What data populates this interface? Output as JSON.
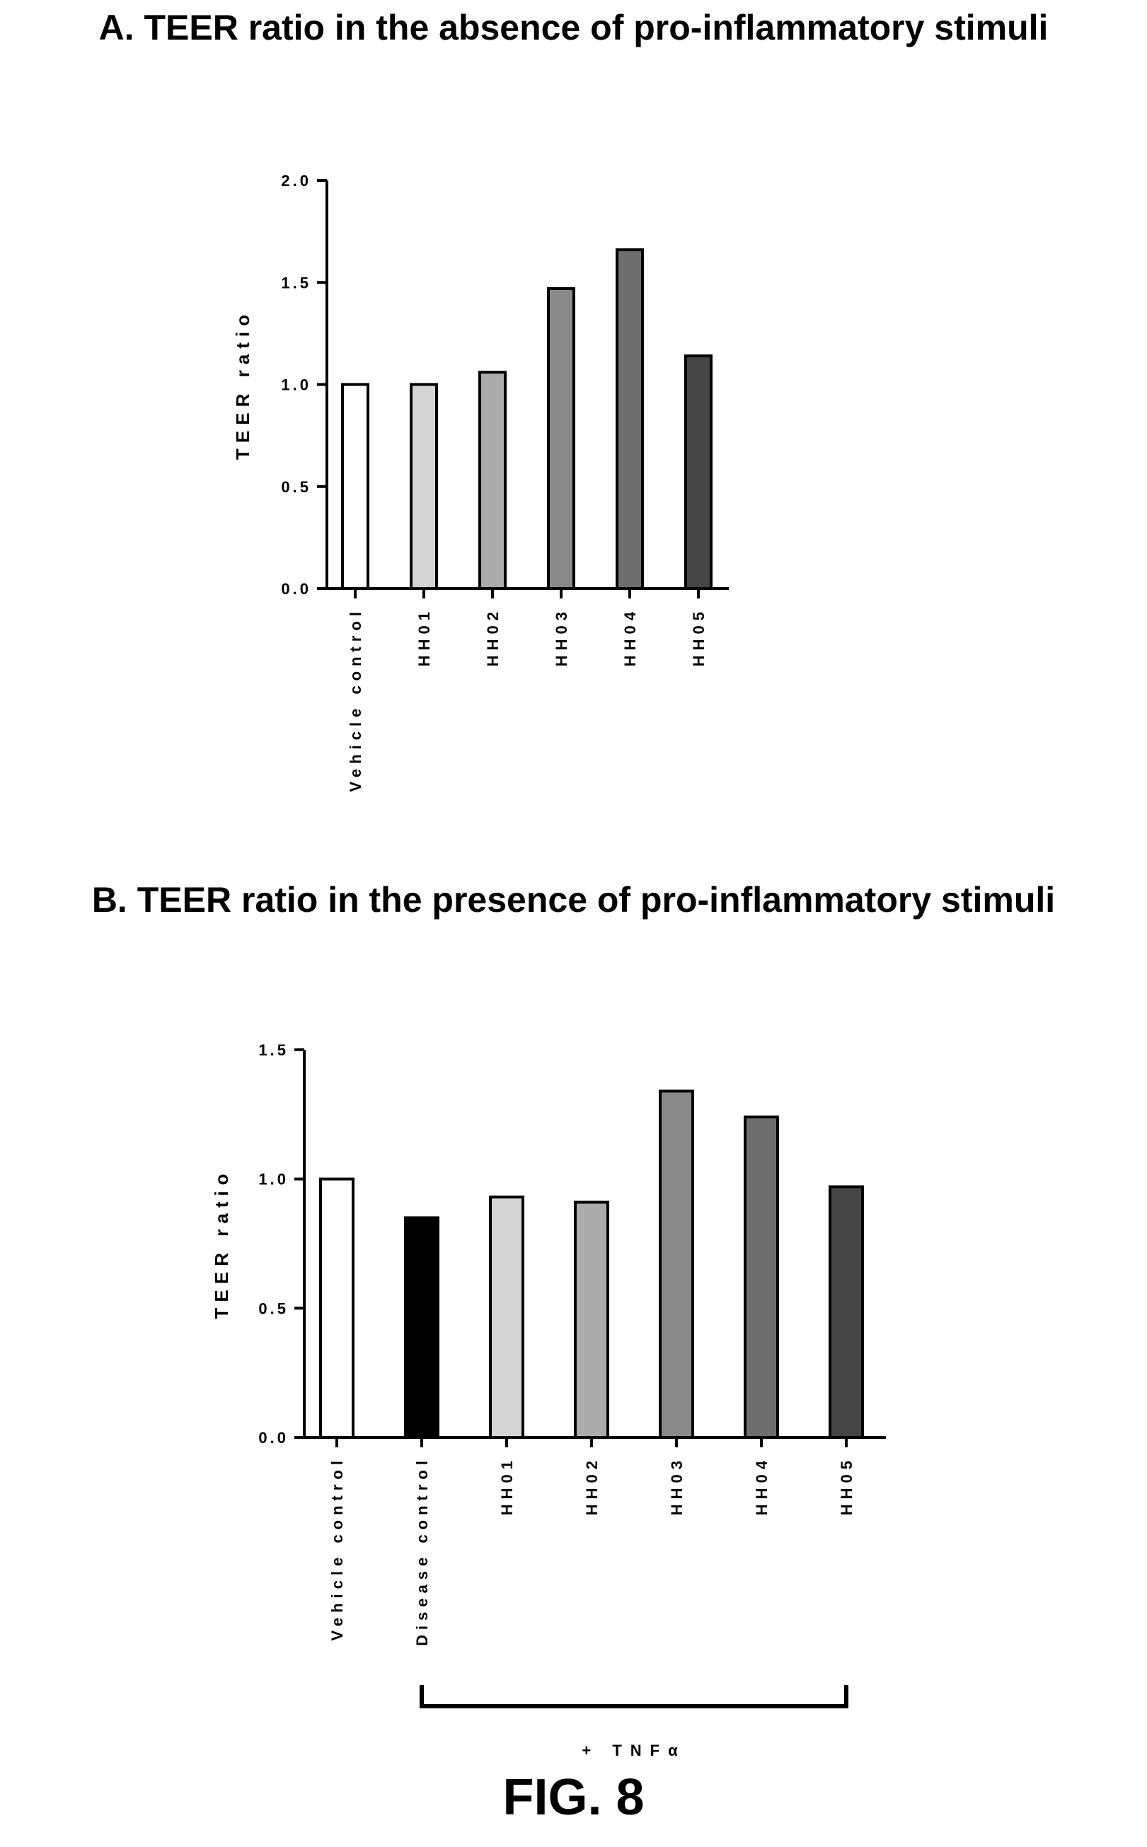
{
  "figure_label": "FIG. 8",
  "colors": {
    "ink": "#000000",
    "fills": [
      "#ffffff",
      "#000000",
      "#d4d4d4",
      "#ababab",
      "#8a8a8a",
      "#6e6e6e",
      "#454545"
    ]
  },
  "chart_data": [
    {
      "type": "bar",
      "title": "A. TEER ratio in the absence of pro-inflammatory stimuli",
      "xlabel": "",
      "ylabel": "TEER ratio",
      "ylim": [
        0,
        2.0
      ],
      "yticks": [
        "0.0",
        "0.5",
        "1.0",
        "1.5",
        "2.0"
      ],
      "categories": [
        "Vehicle control",
        "HH01",
        "HH02",
        "HH03",
        "HH04",
        "HH05"
      ],
      "values": [
        1.0,
        1.0,
        1.06,
        1.47,
        1.66,
        1.14
      ],
      "fills": [
        "#ffffff",
        "#d4d4d4",
        "#ababab",
        "#8a8a8a",
        "#6e6e6e",
        "#454545"
      ],
      "grid": false,
      "legend": "none"
    },
    {
      "type": "bar",
      "title": "B. TEER ratio in the presence of pro-inflammatory stimuli",
      "xlabel": "",
      "ylabel": "TEER ratio",
      "ylim": [
        0,
        1.5
      ],
      "yticks": [
        "0.0",
        "0.5",
        "1.0",
        "1.5"
      ],
      "categories": [
        "Vehicle control",
        "Disease control",
        "HH01",
        "HH02",
        "HH03",
        "HH04",
        "HH05"
      ],
      "values": [
        1.0,
        0.85,
        0.93,
        0.91,
        1.34,
        1.24,
        0.97
      ],
      "fills": [
        "#ffffff",
        "#000000",
        "#d4d4d4",
        "#ababab",
        "#8a8a8a",
        "#6e6e6e",
        "#454545"
      ],
      "grid": false,
      "legend": "none",
      "bracket": {
        "label": "+ TNFα",
        "from_category": 1,
        "to_category": 6
      }
    }
  ]
}
